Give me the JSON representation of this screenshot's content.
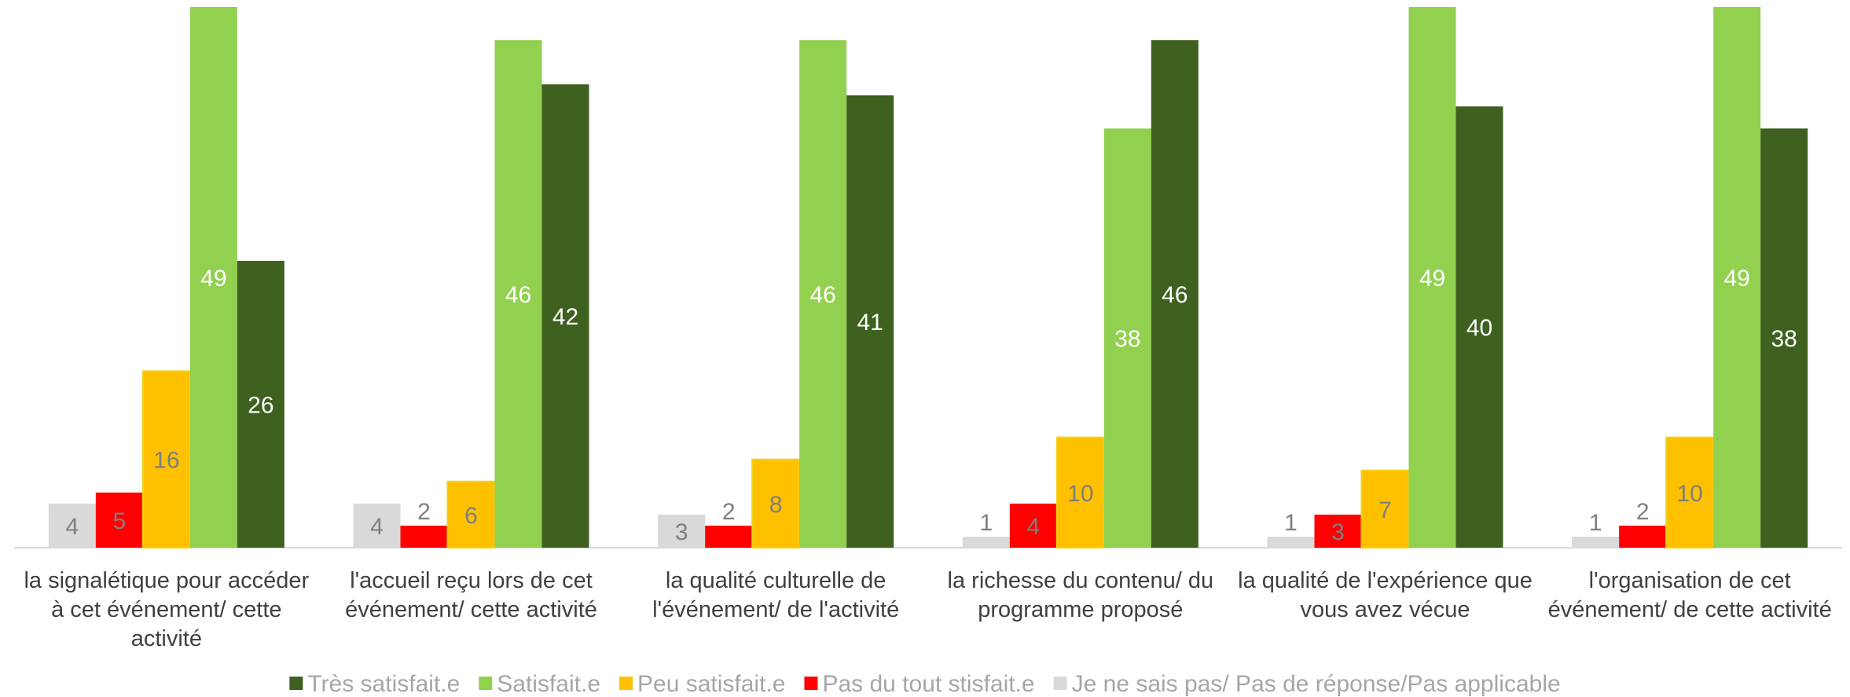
{
  "chart_data": {
    "type": "bar",
    "categories": [
      "la signalétique pour accéder à cet événement/ cette activité",
      "l'accueil reçu lors de cet événement/ cette activité",
      "la qualité culturelle de l'événement/ de l'activité",
      "la richesse du contenu/ du programme proposé",
      "la qualité de l'expérience que vous avez vécue",
      "l'organisation de cet événement/ de cette activité"
    ],
    "series": [
      {
        "name": "Très satisfait.e",
        "color": "#3f6120",
        "values": [
          26,
          42,
          41,
          46,
          40,
          38
        ]
      },
      {
        "name": "Satisfait.e",
        "color": "#92d050",
        "values": [
          49,
          46,
          46,
          38,
          49,
          49
        ]
      },
      {
        "name": "Peu satisfait.e",
        "color": "#ffc000",
        "values": [
          16,
          6,
          8,
          10,
          7,
          10
        ]
      },
      {
        "name": "Pas du tout stisfait.e",
        "color": "#ff0000",
        "values": [
          5,
          2,
          2,
          4,
          3,
          2
        ]
      },
      {
        "name": "Je ne sais pas/ Pas de réponse/Pas applicable",
        "color": "#d9d9d9",
        "values": [
          4,
          4,
          3,
          1,
          1,
          1
        ]
      }
    ],
    "ylim": [
      0,
      49
    ]
  }
}
